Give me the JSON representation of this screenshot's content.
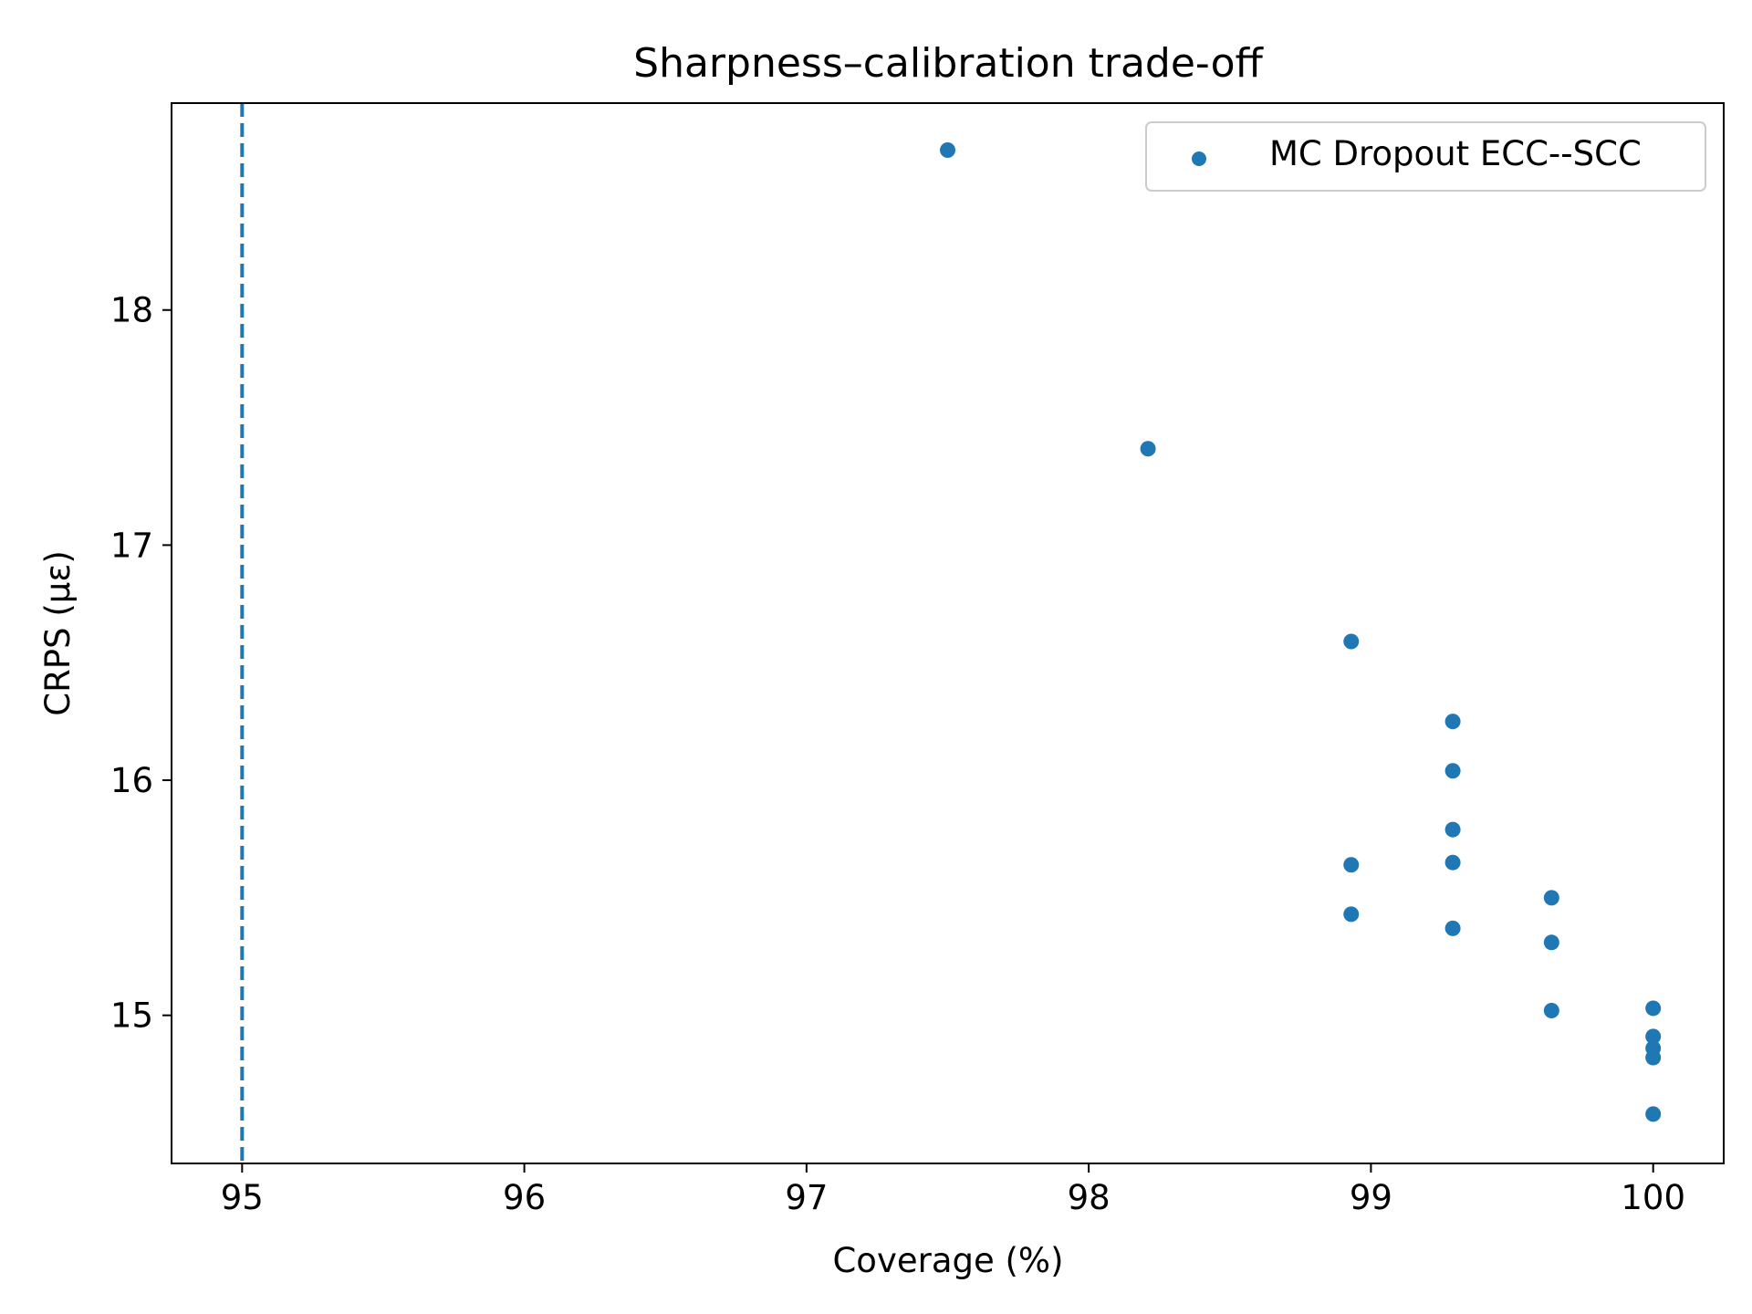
{
  "chart_data": {
    "type": "scatter",
    "title": "Sharpness–calibration trade-off",
    "xlabel": "Coverage (%)",
    "ylabel": "CRPS (με)",
    "xlim": [
      94.75,
      100.25
    ],
    "ylim": [
      14.37,
      18.88
    ],
    "xticks": [
      95,
      96,
      97,
      98,
      99,
      100
    ],
    "yticks": [
      15,
      16,
      17,
      18
    ],
    "grid": false,
    "legend_position": "top-right",
    "reference_line": {
      "axis": "x",
      "value": 95,
      "style": "dashed"
    },
    "series": [
      {
        "name": "MC Dropout ECC--SCC",
        "color": "#1f77b4",
        "points": [
          {
            "x": 97.5,
            "y": 18.68
          },
          {
            "x": 98.21,
            "y": 17.41
          },
          {
            "x": 98.93,
            "y": 16.59
          },
          {
            "x": 98.93,
            "y": 15.64
          },
          {
            "x": 98.93,
            "y": 15.43
          },
          {
            "x": 99.29,
            "y": 16.25
          },
          {
            "x": 99.29,
            "y": 16.04
          },
          {
            "x": 99.29,
            "y": 15.79
          },
          {
            "x": 99.29,
            "y": 15.65
          },
          {
            "x": 99.29,
            "y": 15.37
          },
          {
            "x": 99.64,
            "y": 15.5
          },
          {
            "x": 99.64,
            "y": 15.31
          },
          {
            "x": 99.64,
            "y": 15.02
          },
          {
            "x": 100.0,
            "y": 15.03
          },
          {
            "x": 100.0,
            "y": 14.91
          },
          {
            "x": 100.0,
            "y": 14.86
          },
          {
            "x": 100.0,
            "y": 14.82
          },
          {
            "x": 100.0,
            "y": 14.58
          }
        ]
      }
    ]
  }
}
